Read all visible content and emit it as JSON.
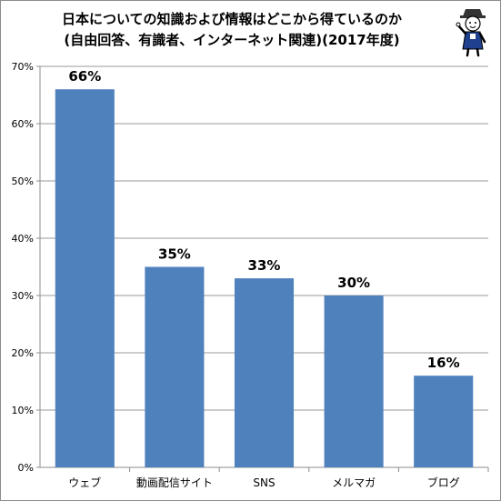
{
  "chart_data": {
    "type": "bar",
    "title": "日本についての知識および情報はどこから得ているのか",
    "subtitle": "(自由回答、有識者、インターネット関連)(2017年度)",
    "categories": [
      "ウェブ",
      "動画配信サイト",
      "SNS",
      "メルマガ",
      "ブログ"
    ],
    "values": [
      66,
      35,
      33,
      30,
      16
    ],
    "data_labels": [
      "66%",
      "35%",
      "33%",
      "30%",
      "16%"
    ],
    "ylim": [
      0,
      70
    ],
    "yticks": [
      0,
      10,
      20,
      30,
      40,
      50,
      60,
      70
    ],
    "ytick_labels": [
      "0%",
      "10%",
      "20%",
      "30%",
      "40%",
      "50%",
      "60%",
      "70%"
    ],
    "xlabel": "",
    "ylabel": "",
    "grid": true,
    "legend": "none",
    "bar_color": "#4f81bd"
  },
  "mascot": {
    "icon": "mascot-character-icon"
  }
}
